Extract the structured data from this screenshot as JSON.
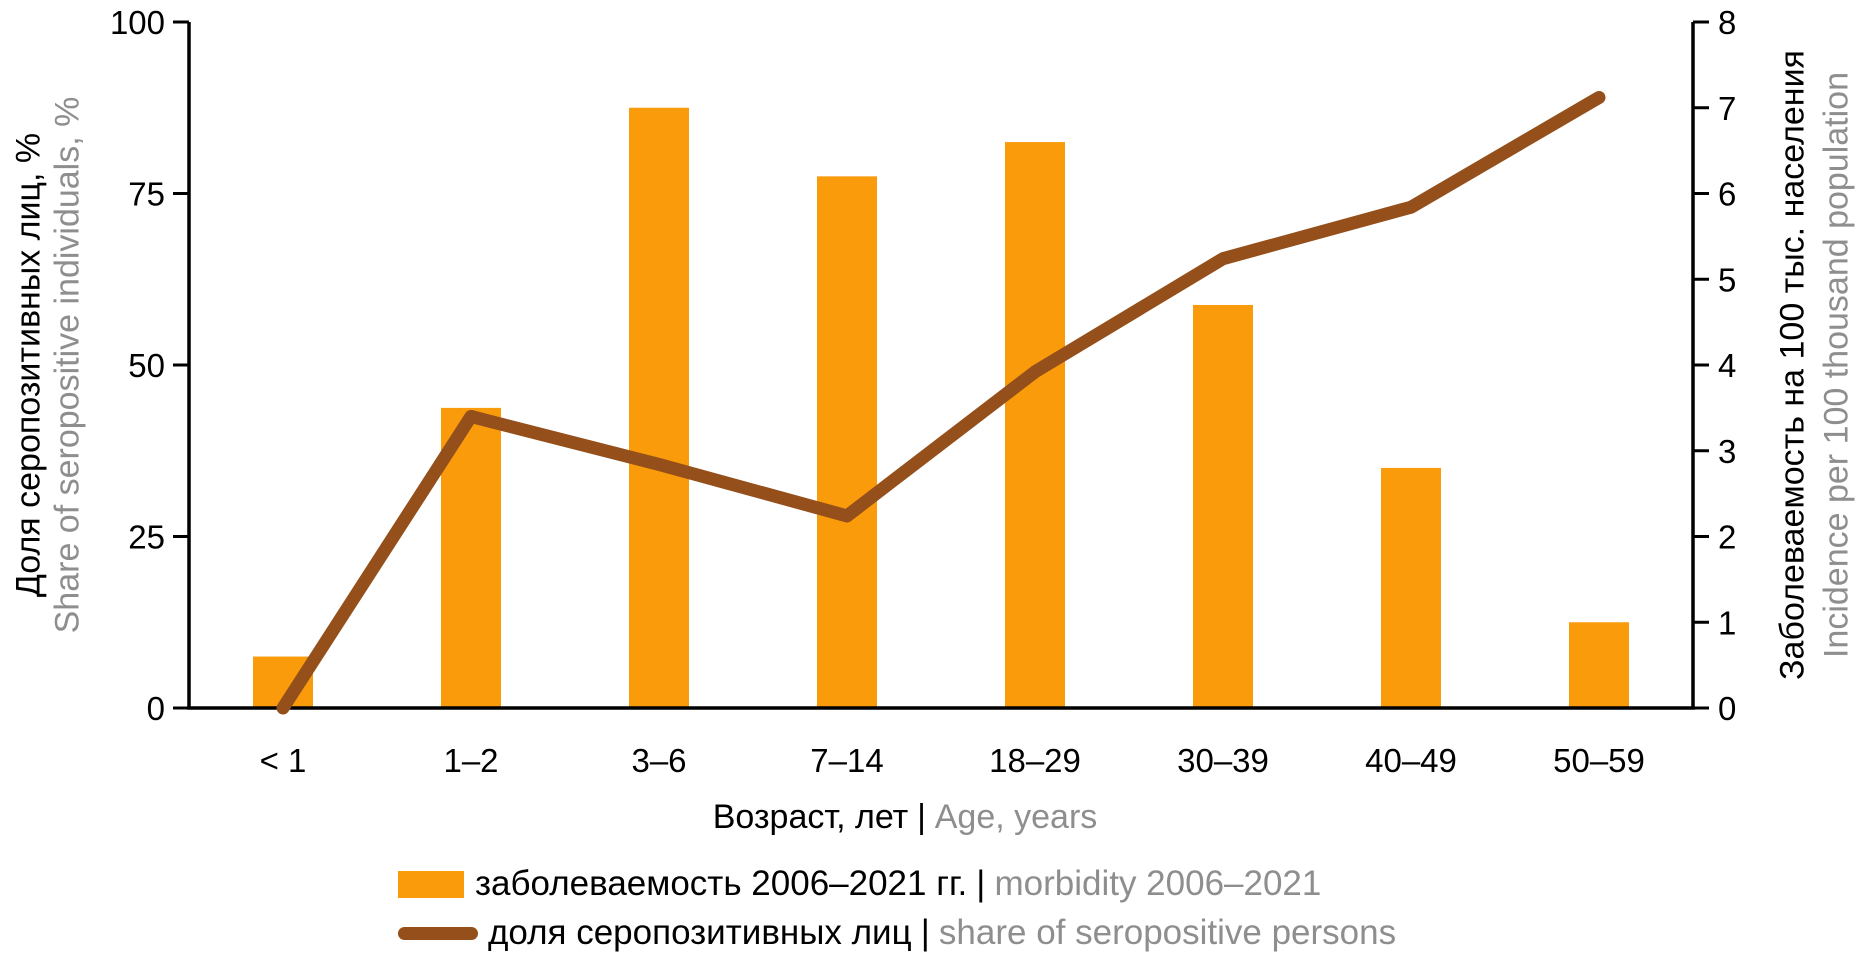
{
  "colors": {
    "bar": "#FA9B0C",
    "line": "#944F1A",
    "axis": "#000000",
    "text_primary": "#000000",
    "text_secondary": "#8E8E8E"
  },
  "chart_data": {
    "type": "combo",
    "categories": [
      "< 1",
      "1–2",
      "3–6",
      "7–14",
      "18–29",
      "30–39",
      "40–49",
      "50–59"
    ],
    "series": [
      {
        "name": "заболеваемость 2006–2021 гг. | morbidity 2006–2021",
        "type": "bar",
        "axis": "right",
        "values": [
          0.6,
          3.5,
          7.0,
          6.2,
          6.6,
          4.7,
          2.8,
          1.0
        ]
      },
      {
        "name": "доля серопозитивных лиц | share of seropositive persons",
        "type": "line",
        "axis": "left",
        "values": [
          0,
          42.5,
          35.5,
          28,
          49,
          65.5,
          73,
          89
        ]
      }
    ],
    "left_axis": {
      "title_ru": "Доля серопозитивных лиц, %",
      "title_en": "Share of seropositive individuals, %",
      "min": 0,
      "max": 100,
      "ticks": [
        0,
        25,
        50,
        75,
        100
      ]
    },
    "right_axis": {
      "title_ru": "Заболеваемость на 100 тыс. населения",
      "title_en": "Incidence per 100 thousand population",
      "min": 0,
      "max": 8,
      "ticks": [
        0,
        1,
        2,
        3,
        4,
        5,
        6,
        7,
        8
      ]
    },
    "x_axis": {
      "title_ru": "Возраст, лет",
      "separator": "|",
      "title_en": "Age, years"
    },
    "legend": [
      {
        "swatch": "bar",
        "label_ru": "заболеваемость 2006–2021 гг.",
        "separator": "|",
        "label_en": "morbidity 2006–2021"
      },
      {
        "swatch": "line",
        "label_ru": "доля серопозитивных лиц",
        "separator": "|",
        "label_en": "share of seropositive persons"
      }
    ],
    "grid": false,
    "legend_position": "bottom-left"
  }
}
